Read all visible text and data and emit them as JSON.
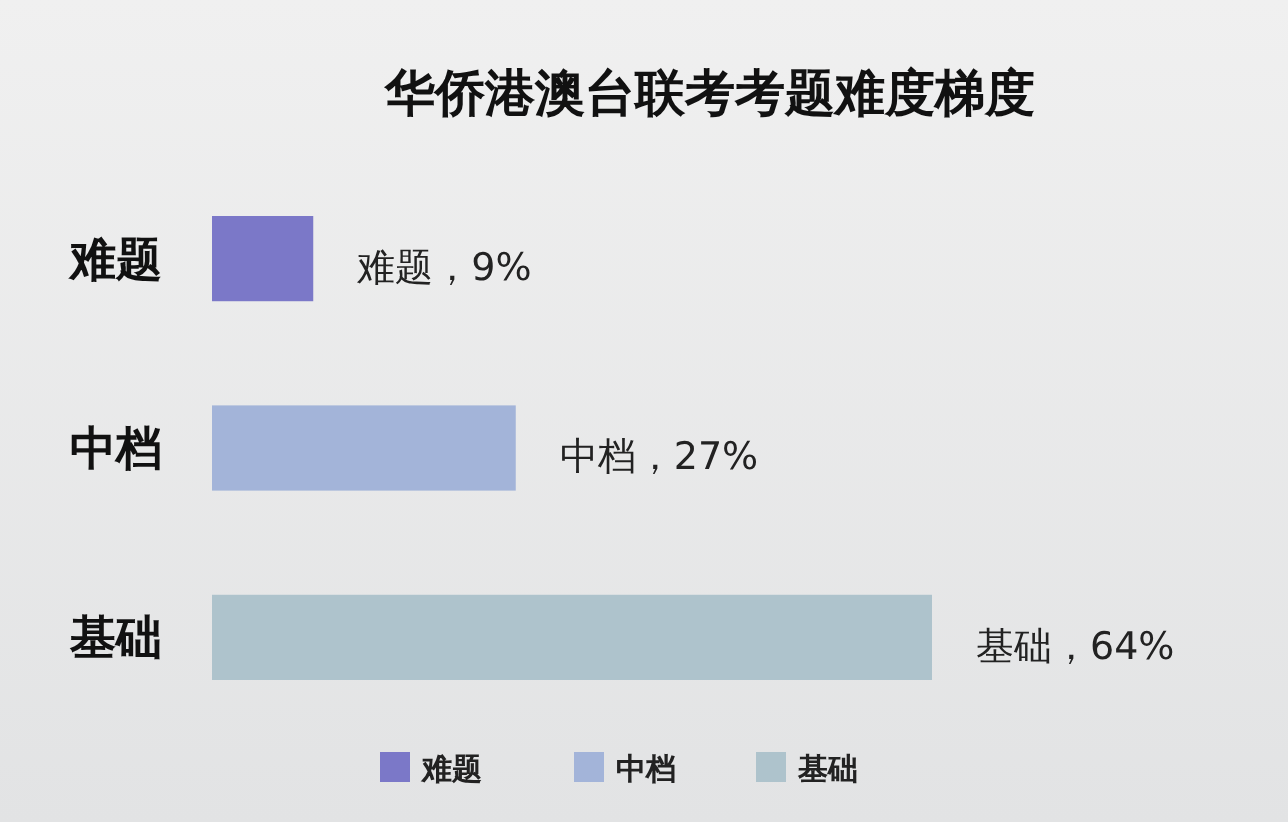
{
  "chart_data": {
    "type": "bar",
    "orientation": "horizontal",
    "title": "华侨港澳台联考考题难度梯度",
    "categories": [
      "难题",
      "中档",
      "基础"
    ],
    "series": [
      {
        "name": "难题",
        "color": "#7b78c8",
        "values": [
          9,
          null,
          null
        ],
        "value_labels": [
          "难题，9%",
          null,
          null
        ]
      },
      {
        "name": "中档",
        "color": "#a3b4d9",
        "values": [
          null,
          27,
          null
        ],
        "value_labels": [
          null,
          "中档，27%",
          null
        ]
      },
      {
        "name": "基础",
        "color": "#aec3cc",
        "values": [
          null,
          null,
          64
        ],
        "value_labels": [
          null,
          null,
          "基础，64%"
        ]
      }
    ],
    "legend": "bottom"
  }
}
